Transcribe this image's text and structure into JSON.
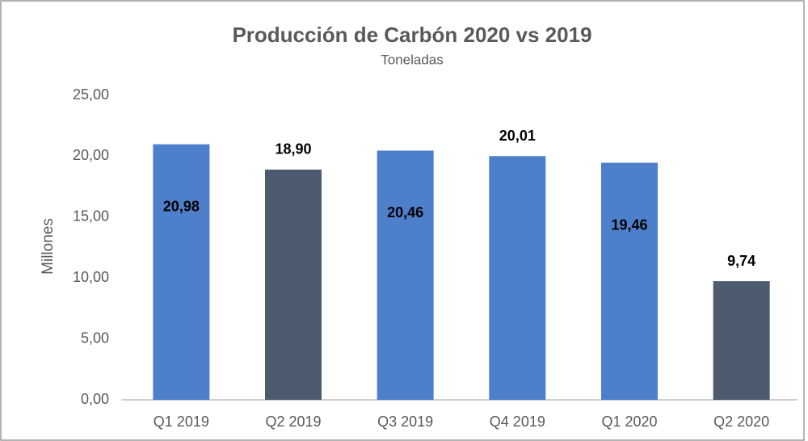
{
  "chart_data": {
    "type": "bar",
    "title": "Producción de Carbón 2020 vs 2019",
    "subtitle": "Toneladas",
    "y_label": "Millones",
    "categories": [
      "Q1 2019",
      "Q2 2019",
      "Q3 2019",
      "Q4 2019",
      "Q1 2020",
      "Q2 2020"
    ],
    "values": [
      20.98,
      18.9,
      20.46,
      20.01,
      19.46,
      9.74
    ],
    "value_labels": [
      "20,98",
      "18,90",
      "20,46",
      "20,01",
      "19,46",
      "9,74"
    ],
    "colors": [
      "#4e7fcb",
      "#4d5b70",
      "#4e7fcb",
      "#4e7fcb",
      "#4e7fcb",
      "#4d5b70"
    ],
    "label_position": [
      "inside",
      "outside",
      "inside",
      "outside",
      "inside",
      "outside"
    ],
    "ylim": [
      0,
      25
    ],
    "yticks": [
      {
        "value": 0,
        "label": "0,00"
      },
      {
        "value": 5,
        "label": "5,00"
      },
      {
        "value": 10,
        "label": "10,00"
      },
      {
        "value": 15,
        "label": "15,00"
      },
      {
        "value": 20,
        "label": "20,00"
      },
      {
        "value": 25,
        "label": "25,00"
      }
    ],
    "grid": false
  }
}
